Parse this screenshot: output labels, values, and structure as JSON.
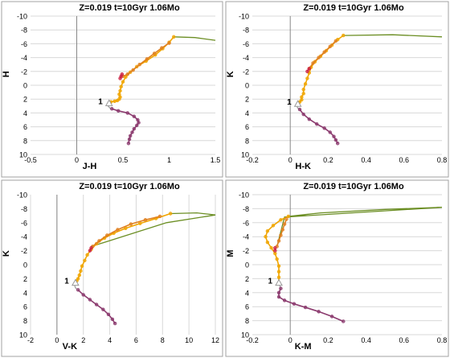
{
  "chart_data": [
    {
      "type": "line",
      "title": "Z=0.019  t=10Gyr  1.06Mo",
      "xlabel": "J-H",
      "ylabel": "H",
      "xlim": [
        -0.5,
        1.5
      ],
      "ylim": [
        -10,
        10
      ],
      "y_inverted": true,
      "x_ticks": [
        "-0.5",
        "0",
        "0.5",
        "1",
        "1.5"
      ],
      "y_ticks": [
        "-10",
        "-8",
        "-6",
        "-4",
        "-2",
        "0",
        "2",
        "4",
        "6",
        "8",
        "10"
      ],
      "grid": "horizontal",
      "annotation": {
        "text": "1",
        "x": 0.35,
        "y": 2.6
      },
      "series": [
        {
          "color": "#6b8e23",
          "marker": "none",
          "x": [
            1.05,
            1.28,
            1.5
          ],
          "y": [
            -7.0,
            -6.9,
            -6.5
          ]
        },
        {
          "color": "#f0a500",
          "marker": "circle",
          "x": [
            1.05,
            1.0,
            0.93,
            0.85,
            0.75,
            0.65,
            0.58,
            0.53,
            0.5,
            0.48,
            0.47,
            0.46,
            0.47,
            0.46,
            0.44,
            0.41,
            0.37,
            0.35
          ],
          "y": [
            -7.0,
            -6.2,
            -5.3,
            -4.4,
            -3.5,
            -2.7,
            -1.9,
            -1.2,
            -0.5,
            0.2,
            0.8,
            1.3,
            1.7,
            2.0,
            2.2,
            2.3,
            2.4,
            2.6
          ]
        },
        {
          "color": "#e08020",
          "marker": "circle",
          "x": [
            0.5,
            0.55,
            0.61,
            0.68,
            0.76,
            0.84,
            0.92,
            1.0
          ],
          "y": [
            -1.3,
            -1.6,
            -2.2,
            -3.0,
            -3.8,
            -4.6,
            -5.4,
            -6.1
          ]
        },
        {
          "color": "#cc2244",
          "marker": "circle",
          "x": [
            0.47,
            0.48,
            0.49
          ],
          "y": [
            -1.0,
            -1.3,
            -1.6
          ]
        },
        {
          "color": "#a0a0a0",
          "marker": "none",
          "x": [
            0.35,
            0.34,
            0.36,
            0.38
          ],
          "y": [
            2.6,
            3.0,
            3.3,
            3.4
          ]
        },
        {
          "color": "#8b3a6e",
          "marker": "circle",
          "x": [
            0.38,
            0.45,
            0.55,
            0.62,
            0.66,
            0.67,
            0.65,
            0.62,
            0.6,
            0.58,
            0.57,
            0.56
          ],
          "y": [
            3.4,
            3.7,
            4.0,
            4.5,
            5.0,
            5.4,
            5.8,
            6.3,
            6.8,
            7.3,
            7.8,
            8.4
          ]
        }
      ]
    },
    {
      "type": "line",
      "title": "Z=0.019  t=10Gyr  1.06Mo",
      "xlabel": "H-K",
      "ylabel": "K",
      "xlim": [
        -0.2,
        0.8
      ],
      "ylim": [
        -10,
        10
      ],
      "y_inverted": true,
      "x_ticks": [
        "-0.2",
        "0",
        "0.2",
        "0.4",
        "0.6",
        "0.8"
      ],
      "y_ticks": [
        "-10",
        "-8",
        "-6",
        "-4",
        "-2",
        "0",
        "2",
        "4",
        "6",
        "8",
        "10"
      ],
      "grid": "horizontal",
      "annotation": {
        "text": "1",
        "x": 0.04,
        "y": 2.7
      },
      "series": [
        {
          "color": "#6b8e23",
          "marker": "none",
          "x": [
            0.28,
            0.54,
            0.8
          ],
          "y": [
            -7.2,
            -7.3,
            -7.0
          ]
        },
        {
          "color": "#f0a500",
          "marker": "circle",
          "x": [
            0.28,
            0.25,
            0.22,
            0.19,
            0.16,
            0.13,
            0.11,
            0.1,
            0.09,
            0.08,
            0.07,
            0.07,
            0.06,
            0.06,
            0.05,
            0.04
          ],
          "y": [
            -7.2,
            -6.6,
            -5.8,
            -5.0,
            -4.2,
            -3.4,
            -2.6,
            -1.8,
            -1.0,
            -0.2,
            0.6,
            1.2,
            1.7,
            2.1,
            2.4,
            2.7
          ]
        },
        {
          "color": "#e08020",
          "marker": "circle",
          "x": [
            0.1,
            0.12,
            0.15,
            0.18,
            0.21,
            0.24
          ],
          "y": [
            -2.4,
            -3.2,
            -4.0,
            -4.8,
            -5.6,
            -6.4
          ]
        },
        {
          "color": "#cc2244",
          "marker": "circle",
          "x": [
            0.09,
            0.1
          ],
          "y": [
            -2.0,
            -2.4
          ]
        },
        {
          "color": "#a0a0a0",
          "marker": "none",
          "x": [
            0.04,
            0.035,
            0.04,
            0.05
          ],
          "y": [
            2.7,
            3.0,
            3.3,
            3.5
          ]
        },
        {
          "color": "#8b3a6e",
          "marker": "circle",
          "x": [
            0.05,
            0.07,
            0.1,
            0.14,
            0.18,
            0.21,
            0.23,
            0.24,
            0.25
          ],
          "y": [
            3.5,
            4.2,
            4.9,
            5.6,
            6.2,
            6.8,
            7.4,
            7.9,
            8.4
          ]
        }
      ]
    },
    {
      "type": "line",
      "title": "Z=0.019  t=10Gyr  1.06Mo",
      "xlabel": "V-K",
      "ylabel": "K",
      "xlim": [
        -2,
        12
      ],
      "ylim": [
        -10,
        10
      ],
      "y_inverted": true,
      "x_ticks": [
        "-2",
        "0",
        "2",
        "4",
        "6",
        "8",
        "10",
        "12"
      ],
      "y_ticks": [
        "-10",
        "-8",
        "-6",
        "-4",
        "-2",
        "0",
        "2",
        "4",
        "6",
        "8",
        "10"
      ],
      "grid": "vertical",
      "annotation": {
        "text": "1",
        "x": 1.4,
        "y": 2.6
      },
      "series": [
        {
          "color": "#6b8e23",
          "marker": "none",
          "x": [
            8.6,
            10.6,
            12.0,
            8.3,
            2.6
          ],
          "y": [
            -7.3,
            -7.4,
            -7.1,
            -6.0,
            -2.6
          ]
        },
        {
          "color": "#f0a500",
          "marker": "circle",
          "x": [
            8.6,
            7.5,
            6.3,
            5.2,
            4.3,
            3.6,
            3.0,
            2.6,
            2.3,
            2.1,
            1.9,
            1.8,
            1.7,
            1.6,
            1.5,
            1.4
          ],
          "y": [
            -7.3,
            -6.6,
            -5.9,
            -5.2,
            -4.5,
            -3.8,
            -3.0,
            -2.2,
            -1.4,
            -0.6,
            0.2,
            0.9,
            1.5,
            2.0,
            2.3,
            2.6
          ]
        },
        {
          "color": "#e08020",
          "marker": "circle",
          "x": [
            2.7,
            3.2,
            3.8,
            4.6,
            5.6,
            6.7,
            7.8
          ],
          "y": [
            -2.6,
            -3.4,
            -4.2,
            -5.0,
            -5.8,
            -6.4,
            -6.9
          ]
        },
        {
          "color": "#cc2244",
          "marker": "circle",
          "x": [
            2.5,
            2.6
          ],
          "y": [
            -2.0,
            -2.4
          ]
        },
        {
          "color": "#a0a0a0",
          "marker": "none",
          "x": [
            1.4,
            1.35,
            1.4,
            1.5
          ],
          "y": [
            2.6,
            3.0,
            3.3,
            3.5
          ]
        },
        {
          "color": "#8b3a6e",
          "marker": "circle",
          "x": [
            1.6,
            2.0,
            2.5,
            3.0,
            3.5,
            3.9,
            4.2,
            4.4
          ],
          "y": [
            3.6,
            4.3,
            5.0,
            5.7,
            6.4,
            7.1,
            7.8,
            8.4
          ]
        }
      ]
    },
    {
      "type": "line",
      "title": "Z=0.019  t=10Gyr  1.06Mo",
      "xlabel": "K-M",
      "ylabel": "M",
      "xlim": [
        -0.2,
        0.8
      ],
      "ylim": [
        -10,
        10
      ],
      "y_inverted": true,
      "x_ticks": [
        "-0.2",
        "0",
        "0.2",
        "0.4",
        "0.6",
        "0.8"
      ],
      "y_ticks": [
        "-10",
        "-8",
        "-6",
        "-4",
        "-2",
        "0",
        "2",
        "4",
        "6",
        "8",
        "10"
      ],
      "grid": "horizontal",
      "annotation": {
        "text": "1",
        "x": -0.06,
        "y": 2.6
      },
      "series": [
        {
          "color": "#6b8e23",
          "marker": "none",
          "x": [
            -0.01,
            0.16,
            0.5,
            0.8,
            -0.03,
            -0.07
          ],
          "y": [
            -6.9,
            -7.4,
            -7.9,
            -8.2,
            -6.8,
            -2.6
          ]
        },
        {
          "color": "#f0a500",
          "marker": "circle",
          "x": [
            -0.01,
            -0.05,
            -0.09,
            -0.12,
            -0.13,
            -0.12,
            -0.1,
            -0.08,
            -0.07,
            -0.06,
            -0.06,
            -0.06,
            -0.06
          ],
          "y": [
            -6.9,
            -6.4,
            -5.6,
            -4.8,
            -4.0,
            -3.2,
            -2.4,
            -1.6,
            -0.8,
            0.2,
            1.0,
            1.8,
            2.6
          ]
        },
        {
          "color": "#e08020",
          "marker": "circle",
          "x": [
            -0.07,
            -0.06,
            -0.05,
            -0.04,
            -0.03,
            -0.02
          ],
          "y": [
            -2.6,
            -3.4,
            -4.2,
            -5.0,
            -5.8,
            -6.5
          ]
        },
        {
          "color": "#cc2244",
          "marker": "circle",
          "x": [
            -0.08,
            -0.08
          ],
          "y": [
            -2.0,
            -2.4
          ]
        },
        {
          "color": "#a0a0a0",
          "marker": "none",
          "x": [
            -0.06,
            -0.055,
            -0.05
          ],
          "y": [
            2.6,
            3.0,
            3.4
          ]
        },
        {
          "color": "#8b3a6e",
          "marker": "circle",
          "x": [
            -0.05,
            -0.06,
            -0.06,
            -0.03,
            0.02,
            0.08,
            0.15,
            0.22,
            0.28
          ],
          "y": [
            3.4,
            4.0,
            4.6,
            5.1,
            5.6,
            6.1,
            6.7,
            7.4,
            8.1
          ]
        }
      ]
    }
  ]
}
